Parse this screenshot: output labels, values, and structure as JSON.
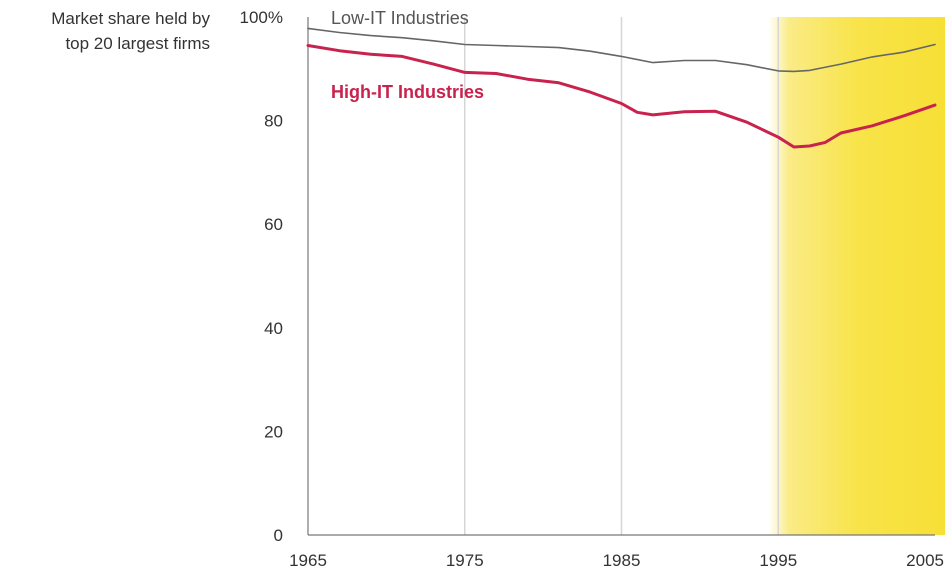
{
  "chart_data": {
    "type": "line",
    "ylabel_lines": [
      "Market share held by",
      "top 20 largest firms"
    ],
    "ylim": [
      0,
      100
    ],
    "yticks": [
      {
        "value": 0,
        "label": "0"
      },
      {
        "value": 20,
        "label": "20"
      },
      {
        "value": 40,
        "label": "40"
      },
      {
        "value": 60,
        "label": "60"
      },
      {
        "value": 80,
        "label": "80"
      },
      {
        "value": 100,
        "label": "100%"
      }
    ],
    "xlim": [
      1965,
      2005
    ],
    "xticks": [
      {
        "value": 1965,
        "label": "1965"
      },
      {
        "value": 1975,
        "label": "1975"
      },
      {
        "value": 1985,
        "label": "1985"
      },
      {
        "value": 1995,
        "label": "1995"
      },
      {
        "value": 2005,
        "label": "2005"
      }
    ],
    "highlight_range": [
      1995,
      2005
    ],
    "highlight_color": "#f8e44a",
    "grid": "vertical",
    "series": [
      {
        "name": "Low-IT Industries",
        "color": "#666666",
        "points": [
          [
            1965,
            97.8
          ],
          [
            1967,
            97.0
          ],
          [
            1969,
            96.4
          ],
          [
            1971,
            96.0
          ],
          [
            1973,
            95.4
          ],
          [
            1975,
            94.7
          ],
          [
            1977,
            94.5
          ],
          [
            1979,
            94.3
          ],
          [
            1981,
            94.1
          ],
          [
            1983,
            93.4
          ],
          [
            1985,
            92.4
          ],
          [
            1987,
            91.2
          ],
          [
            1989,
            91.6
          ],
          [
            1991,
            91.6
          ],
          [
            1993,
            90.8
          ],
          [
            1995,
            89.6
          ],
          [
            1996,
            89.5
          ],
          [
            1997,
            89.7
          ],
          [
            1999,
            90.9
          ],
          [
            2001,
            92.3
          ],
          [
            2003,
            93.2
          ],
          [
            2005,
            94.7
          ]
        ]
      },
      {
        "name": "High-IT Industries",
        "color": "#c8224e",
        "points": [
          [
            1965,
            94.5
          ],
          [
            1967,
            93.5
          ],
          [
            1969,
            92.8
          ],
          [
            1971,
            92.4
          ],
          [
            1973,
            90.9
          ],
          [
            1975,
            89.3
          ],
          [
            1977,
            89.1
          ],
          [
            1979,
            88.0
          ],
          [
            1981,
            87.3
          ],
          [
            1983,
            85.5
          ],
          [
            1985,
            83.3
          ],
          [
            1986,
            81.6
          ],
          [
            1987,
            81.1
          ],
          [
            1989,
            81.7
          ],
          [
            1991,
            81.8
          ],
          [
            1993,
            79.7
          ],
          [
            1995,
            76.8
          ],
          [
            1996,
            74.9
          ],
          [
            1997,
            75.1
          ],
          [
            1998,
            75.8
          ],
          [
            1999,
            77.6
          ],
          [
            2001,
            79.0
          ],
          [
            2003,
            80.9
          ],
          [
            2005,
            83.0
          ]
        ]
      }
    ]
  }
}
